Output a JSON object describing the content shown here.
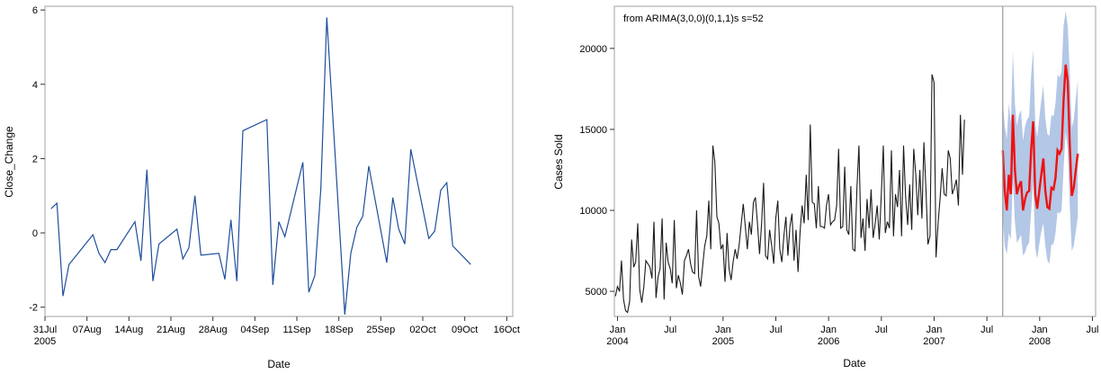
{
  "chart_data": [
    {
      "type": "line",
      "title": "",
      "xlabel": "Date",
      "ylabel": "Close_Change",
      "x_tick_labels": [
        {
          "date": "2005-07-31",
          "label": "31Jul",
          "label2": "2005"
        },
        {
          "date": "2005-08-07",
          "label": "07Aug",
          "label2": ""
        },
        {
          "date": "2005-08-14",
          "label": "14Aug",
          "label2": ""
        },
        {
          "date": "2005-08-21",
          "label": "21Aug",
          "label2": ""
        },
        {
          "date": "2005-08-28",
          "label": "28Aug",
          "label2": ""
        },
        {
          "date": "2005-09-04",
          "label": "04Sep",
          "label2": ""
        },
        {
          "date": "2005-09-11",
          "label": "11Sep",
          "label2": ""
        },
        {
          "date": "2005-09-18",
          "label": "18Sep",
          "label2": ""
        },
        {
          "date": "2005-09-25",
          "label": "25Sep",
          "label2": ""
        },
        {
          "date": "2005-10-02",
          "label": "02Oct",
          "label2": ""
        },
        {
          "date": "2005-10-09",
          "label": "09Oct",
          "label2": ""
        },
        {
          "date": "2005-10-16",
          "label": "16Oct",
          "label2": ""
        }
      ],
      "y_ticks": [
        -2,
        0,
        2,
        4,
        6
      ],
      "xlim": [
        "2005-07-31",
        "2005-10-17"
      ],
      "ylim": [
        -2.25,
        6.1
      ],
      "grid": false,
      "color": "#1f4e9c",
      "series": [
        {
          "x": [
            "2005-08-01",
            "2005-08-02",
            "2005-08-03",
            "2005-08-04",
            "2005-08-08",
            "2005-08-09",
            "2005-08-10",
            "2005-08-11",
            "2005-08-12",
            "2005-08-15",
            "2005-08-16",
            "2005-08-17",
            "2005-08-18",
            "2005-08-19",
            "2005-08-22",
            "2005-08-23",
            "2005-08-24",
            "2005-08-25",
            "2005-08-26",
            "2005-08-29",
            "2005-08-30",
            "2005-08-31",
            "2005-09-01",
            "2005-09-02",
            "2005-09-06",
            "2005-09-07",
            "2005-09-08",
            "2005-09-09",
            "2005-09-12",
            "2005-09-13",
            "2005-09-14",
            "2005-09-15",
            "2005-09-16",
            "2005-09-19",
            "2005-09-20",
            "2005-09-21",
            "2005-09-22",
            "2005-09-23",
            "2005-09-26",
            "2005-09-27",
            "2005-09-28",
            "2005-09-29",
            "2005-09-30",
            "2005-10-03",
            "2005-10-04",
            "2005-10-05",
            "2005-10-06",
            "2005-10-07",
            "2005-10-10"
          ],
          "y": [
            0.65,
            0.8,
            -1.7,
            -0.85,
            -0.05,
            -0.55,
            -0.8,
            -0.45,
            -0.45,
            0.3,
            -0.75,
            1.7,
            -1.3,
            -0.3,
            0.1,
            -0.7,
            -0.4,
            1.0,
            -0.6,
            -0.55,
            -1.25,
            0.35,
            -1.3,
            2.75,
            3.05,
            -1.4,
            0.3,
            -0.1,
            1.9,
            -1.6,
            -1.15,
            1.2,
            5.8,
            -2.2,
            -0.55,
            0.15,
            0.45,
            1.8,
            -0.8,
            0.95,
            0.1,
            -0.3,
            2.25,
            -0.15,
            0.05,
            1.15,
            1.35,
            -0.35,
            -0.85
          ]
        }
      ]
    },
    {
      "type": "line",
      "title": "",
      "annotation": "from ARIMA(3,0,0)(0,1,1)s  s=52",
      "xlabel": "Date",
      "ylabel": "Cases Sold",
      "x_tick_labels": [
        {
          "year": 2004.0,
          "label": "Jan",
          "label2": "2004"
        },
        {
          "year": 2004.5,
          "label": "Jul",
          "label2": ""
        },
        {
          "year": 2005.0,
          "label": "Jan",
          "label2": "2005"
        },
        {
          "year": 2005.5,
          "label": "Jul",
          "label2": ""
        },
        {
          "year": 2006.0,
          "label": "Jan",
          "label2": "2006"
        },
        {
          "year": 2006.5,
          "label": "Jul",
          "label2": ""
        },
        {
          "year": 2007.0,
          "label": "Jan",
          "label2": "2007"
        },
        {
          "year": 2007.5,
          "label": "Jul",
          "label2": ""
        },
        {
          "year": 2008.0,
          "label": "Jan",
          "label2": "2008"
        },
        {
          "year": 2008.5,
          "label": "Jul",
          "label2": ""
        }
      ],
      "y_ticks": [
        5000,
        10000,
        15000,
        20000
      ],
      "xlim": [
        2003.97,
        2008.53
      ],
      "ylim": [
        3450,
        22600
      ],
      "forecast_start": 2007.65,
      "grid": false,
      "colors": {
        "history": "#1a1a1a",
        "forecast": "#ee1111",
        "band": "#b3c7e6",
        "reference_line": "#999999"
      },
      "series": [
        {
          "name": "",
          "x_start": 2003.98,
          "x_step": 0.01923,
          "y": [
            4700,
            5300,
            5000,
            6900,
            4500,
            3800,
            3700,
            4400,
            8200,
            6500,
            6800,
            9200,
            5100,
            4300,
            5300,
            6900,
            6700,
            6500,
            5800,
            9300,
            4600,
            5900,
            6400,
            9500,
            4500,
            8000,
            6800,
            6400,
            5500,
            9400,
            5200,
            6000,
            5500,
            4800,
            6900,
            7200,
            7600,
            6700,
            6200,
            6100,
            10000,
            5900,
            5300,
            6600,
            7800,
            8400,
            10600,
            7600,
            14000,
            13000,
            9600,
            9200,
            7600,
            7900,
            5600,
            8600,
            6400,
            5700,
            6800,
            7600,
            7000,
            7900,
            9200,
            10400,
            9000,
            7600,
            9300,
            8500,
            10500,
            10800,
            9200,
            7300,
            9100,
            11700,
            7200,
            7000,
            8800,
            7800,
            6700,
            9500,
            10600,
            7600,
            6800,
            8400,
            9600,
            7200,
            9000,
            9800,
            6900,
            8800,
            6200,
            8700,
            10300,
            9200,
            12200,
            9400,
            15300,
            10500,
            10400,
            8900,
            11500,
            9000,
            9000,
            8900,
            10300,
            11000,
            9100,
            9300,
            9400,
            10300,
            13800,
            8900,
            9000,
            12700,
            8800,
            8500,
            11500,
            7600,
            7500,
            11400,
            14000,
            8300,
            9500,
            7500,
            10700,
            8900,
            11300,
            8300,
            9200,
            10300,
            8200,
            10900,
            14000,
            8600,
            9300,
            8900,
            13700,
            8400,
            11000,
            10200,
            12500,
            8400,
            14000,
            10800,
            9100,
            11600,
            8800,
            13800,
            12200,
            9700,
            12500,
            9500,
            14200,
            11300,
            7900,
            8400,
            18400,
            17900,
            7100,
            9200,
            10800,
            12600,
            11000,
            10900,
            13700,
            13200,
            11000,
            11400,
            11900,
            10300,
            15900,
            12200,
            15600
          ]
        },
        {
          "name": "",
          "x_start": 2007.65,
          "x_step": 0.01923,
          "y": [
            13700,
            11200,
            10000,
            12200,
            11000,
            15900,
            12500,
            11000,
            11500,
            11800,
            10000,
            10700,
            11100,
            11200,
            13700,
            15500,
            11000,
            10100,
            11200,
            12200,
            13200,
            11200,
            10200,
            10100,
            11400,
            11300,
            12000,
            13700,
            13500,
            13800,
            16800,
            19000,
            18000,
            14200,
            10900,
            11400,
            12500,
            13500
          ]
        }
      ],
      "confidence_band": {
        "x_start": 2007.65,
        "x_step": 0.01923,
        "lower": [
          9600,
          7800,
          7300,
          8600,
          8200,
          12000,
          9300,
          8000,
          8200,
          8500,
          7200,
          7400,
          7800,
          8000,
          9900,
          11800,
          7700,
          7000,
          7900,
          8700,
          9200,
          7800,
          6900,
          6700,
          7900,
          7900,
          8600,
          9900,
          9800,
          10000,
          12600,
          14800,
          13800,
          10400,
          7500,
          7800,
          8700,
          9600
        ],
        "upper": [
          16800,
          15200,
          14400,
          16600,
          15400,
          19800,
          16600,
          15200,
          15900,
          16200,
          14300,
          15200,
          15600,
          15800,
          18300,
          19900,
          15400,
          14500,
          15700,
          16800,
          17700,
          15700,
          14700,
          14600,
          15900,
          15800,
          16600,
          18400,
          18200,
          18600,
          21400,
          22300,
          21400,
          18600,
          15100,
          15600,
          16900,
          18000
        ]
      }
    }
  ]
}
